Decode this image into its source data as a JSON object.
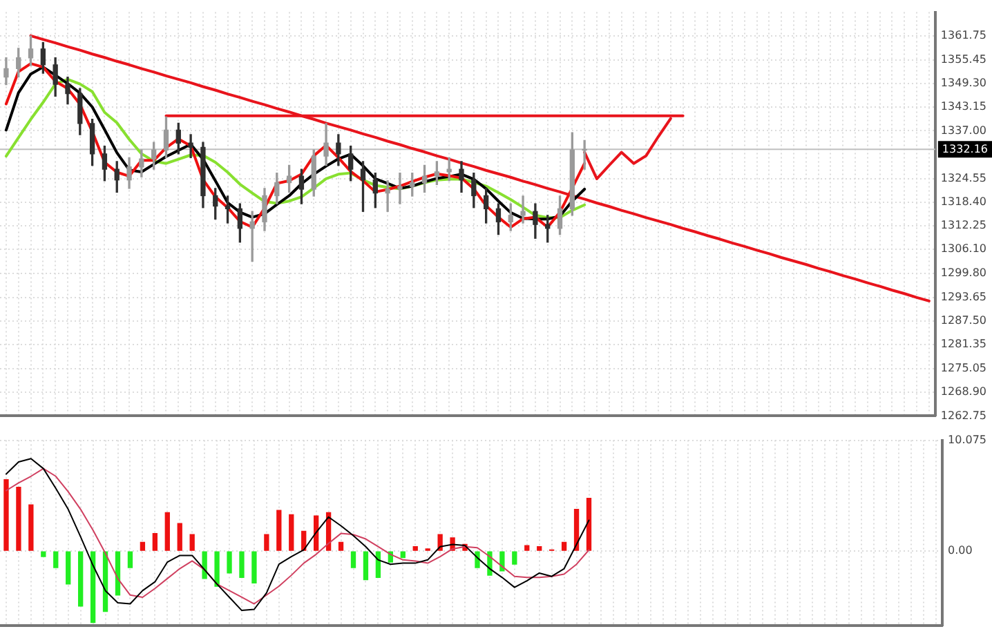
{
  "chart_data": [
    {
      "type": "candlestick",
      "categories": [
        null,
        null,
        null,
        null,
        null,
        null,
        null,
        null,
        null,
        null,
        null,
        null,
        null,
        null,
        null,
        null,
        null,
        null,
        null,
        null,
        null,
        null,
        null,
        null,
        null,
        null,
        null,
        null,
        null,
        null,
        null,
        null,
        null,
        null,
        null,
        null,
        null,
        null,
        null,
        null,
        null,
        null,
        null,
        null,
        null,
        null,
        null,
        null,
        null,
        null,
        null,
        null,
        null,
        null,
        null,
        null,
        null,
        null,
        null,
        null,
        null,
        null,
        null,
        null,
        null,
        null,
        null,
        null,
        null,
        null,
        null,
        null,
        null,
        null,
        null,
        null
      ],
      "ohlc": [
        [
          1351,
          1356,
          1349,
          1353.2
        ],
        [
          1353.2,
          1358.5,
          1351,
          1356
        ],
        [
          1356,
          1361.75,
          1354,
          1358.3
        ],
        [
          1358.3,
          1360,
          1352,
          1354.2
        ],
        [
          1354.2,
          1356,
          1346,
          1349.1
        ],
        [
          1349.1,
          1351,
          1344,
          1346.7
        ],
        [
          1346.7,
          1348,
          1336,
          1338.9
        ],
        [
          1338.9,
          1340,
          1328,
          1331
        ],
        [
          1331,
          1333,
          1324,
          1327
        ],
        [
          1327,
          1329,
          1321,
          1324.2
        ],
        [
          1324.2,
          1330,
          1322,
          1327.6
        ],
        [
          1327.6,
          1332,
          1325,
          1329.7
        ],
        [
          1329.7,
          1334,
          1327,
          1332
        ],
        [
          1332,
          1340.6,
          1330,
          1337.2
        ],
        [
          1337.2,
          1339,
          1331,
          1333.8
        ],
        [
          1333.8,
          1336,
          1330,
          1332.7
        ],
        [
          1332.7,
          1334,
          1317,
          1320.1
        ],
        [
          1320.1,
          1322,
          1314,
          1317.4
        ],
        [
          1317.4,
          1320,
          1313,
          1316.7
        ],
        [
          1316.7,
          1318,
          1308,
          1311.6
        ],
        [
          1311.6,
          1316,
          1303,
          1313.3
        ],
        [
          1313.3,
          1322,
          1311,
          1320.1
        ],
        [
          1320.1,
          1326,
          1318,
          1323.5
        ],
        [
          1323.5,
          1328,
          1321,
          1325.2
        ],
        [
          1325.2,
          1327,
          1318,
          1321.8
        ],
        [
          1321.8,
          1332,
          1320,
          1330.4
        ],
        [
          1330.4,
          1338.9,
          1328,
          1333.8
        ],
        [
          1333.8,
          1336,
          1328,
          1331
        ],
        [
          1331,
          1333,
          1324,
          1327
        ],
        [
          1327,
          1329,
          1316,
          1324.2
        ],
        [
          1324.2,
          1326,
          1317,
          1320.8
        ],
        [
          1320.8,
          1324,
          1316,
          1321.8
        ],
        [
          1321.8,
          1326,
          1318,
          1322.5
        ],
        [
          1322.5,
          1326,
          1320,
          1323.5
        ],
        [
          1323.5,
          1328,
          1321,
          1325.2
        ],
        [
          1325.2,
          1329,
          1323,
          1326.3
        ],
        [
          1326.3,
          1330,
          1324,
          1327
        ],
        [
          1327,
          1329,
          1321,
          1324.2
        ],
        [
          1324.2,
          1326,
          1317,
          1320.1
        ],
        [
          1320.1,
          1322,
          1313,
          1316.7
        ],
        [
          1316.7,
          1318,
          1310,
          1313.3
        ],
        [
          1313.3,
          1318,
          1311,
          1315
        ],
        [
          1315,
          1320,
          1313,
          1316
        ],
        [
          1316,
          1318,
          1309,
          1312.6
        ],
        [
          1312.6,
          1315,
          1308,
          1311.6
        ],
        [
          1311.6,
          1320,
          1310,
          1316.7
        ],
        [
          1316.7,
          1336.5,
          1315,
          1332
        ],
        [
          1332,
          1334.5,
          1327,
          1332.16
        ],
        null,
        null,
        null,
        null,
        null,
        null,
        null,
        null,
        null,
        null,
        null,
        null,
        null,
        null,
        null,
        null,
        null,
        null,
        null,
        null,
        null,
        null,
        null,
        null,
        null,
        null,
        null,
        null
      ],
      "series": [
        {
          "type": "line",
          "color": "#ee1111",
          "values": [
            1344,
            1352.4,
            1354.5,
            1353.6,
            1349.9,
            1348,
            1343.9,
            1336.8,
            1328.8,
            1326.2,
            1325.2,
            1329.3,
            1329.3,
            1332.6,
            1334.9,
            1333.1,
            1324.3,
            1319.8,
            1317,
            1313.4,
            1311.9,
            1316.9,
            1323.3,
            1324,
            1325.7,
            1330.5,
            1333.2,
            1330,
            1326.4,
            1324,
            1321.1,
            1321.7,
            1322.6,
            1323.8,
            1324.9,
            1325.8,
            1325.3,
            1324.7,
            1321.9,
            1317.5,
            1314.5,
            1311.9,
            1314.1,
            1314.5,
            1311.9,
            1315.8,
            1322.1,
            1328.5,
            null,
            null,
            null,
            null,
            null,
            null,
            null,
            null,
            null,
            null,
            null,
            null,
            null,
            null,
            null,
            null,
            null,
            null,
            null,
            null,
            null,
            null,
            null,
            null,
            null,
            null,
            null,
            null
          ]
        },
        {
          "type": "line",
          "color": "#000000",
          "values": [
            1337.2,
            1346.9,
            1351.8,
            1353.6,
            1351.5,
            1349.3,
            1346.8,
            1343.2,
            1337.3,
            1331.3,
            1326.8,
            1326.3,
            1328.3,
            1330.3,
            1331.9,
            1333.5,
            1329.6,
            1324,
            1318.3,
            1315.8,
            1314.5,
            1315.4,
            1317.8,
            1320.1,
            1323.2,
            1325.7,
            1327.8,
            1329.7,
            1330.9,
            1327.9,
            1324.5,
            1323.3,
            1322,
            1322.6,
            1323.7,
            1324.6,
            1325.1,
            1325.7,
            1324.4,
            1321.9,
            1318.7,
            1315.7,
            1314.2,
            1314,
            1314,
            1314.8,
            1318.7,
            1321.8,
            null,
            null,
            null,
            null,
            null,
            null,
            null,
            null,
            null,
            null,
            null,
            null,
            null,
            null,
            null,
            null,
            null,
            null,
            null,
            null,
            null,
            null,
            null,
            null,
            null,
            null,
            null,
            null
          ]
        },
        {
          "type": "line",
          "color": "#88e030",
          "values": [
            1330.4,
            1335.2,
            1340,
            1344.4,
            1349.2,
            1350.4,
            1349.2,
            1347.2,
            1341.8,
            1339.1,
            1334.8,
            1331,
            1329.1,
            1328.5,
            1329.6,
            1330.7,
            1330.6,
            1328.8,
            1326.2,
            1323.1,
            1320.8,
            1318.6,
            1318.1,
            1318.7,
            1319.8,
            1322.1,
            1324.5,
            1325.7,
            1326,
            1324.2,
            1322.8,
            1322.3,
            1321.9,
            1322.6,
            1323.5,
            1324.2,
            1324.4,
            1324.4,
            1323.6,
            1322.6,
            1320.9,
            1319.1,
            1317.1,
            1315,
            1314.4,
            1314.4,
            1316.3,
            1317.7,
            null,
            null,
            null,
            null,
            null,
            null,
            null,
            null,
            null,
            null,
            null,
            null,
            null,
            null,
            null,
            null,
            null,
            null,
            null,
            null,
            null,
            null,
            null,
            null,
            null,
            null,
            null,
            null
          ]
        },
        {
          "type": "line",
          "color": "#e8141c",
          "values": [
            null,
            null,
            1361.75,
            1360.8,
            1359.9,
            1358.9,
            1358,
            1357,
            1356.1,
            1355.1,
            1354.2,
            1353.2,
            1352.3,
            1351.3,
            1350.4,
            1349.5,
            1348.5,
            1347.6,
            1346.6,
            1345.7,
            1344.7,
            1343.8,
            1342.8,
            1341.9,
            1340.9,
            1340,
            1339,
            1338.1,
            1337.2,
            1336.2,
            1335.3,
            1334.3,
            1333.4,
            1332.4,
            1331.5,
            1330.5,
            1329.6,
            1328.6,
            1327.7,
            1326.7,
            1325.8,
            1324.9,
            1323.9,
            1323,
            1322,
            1321.1,
            1320.1,
            1319.2,
            1318.2,
            1317.3,
            1316.3,
            1315.4,
            1314.4,
            1313.5,
            1312.6,
            1311.6,
            1310.7,
            1309.7,
            1308.8,
            1307.8,
            1306.9,
            1305.9,
            1305,
            1304,
            1303.1,
            1302.2,
            1301.2,
            1300.3,
            1299.3,
            1298.4,
            1297.4,
            1296.5,
            1295.5,
            1294.6,
            1293.6,
            1292.7
          ]
        },
        {
          "type": "line",
          "color": "#e8141c",
          "values": [
            null,
            null,
            null,
            null,
            null,
            null,
            null,
            null,
            null,
            null,
            null,
            null,
            null,
            1340.9,
            1340.9,
            1340.9,
            1340.9,
            1340.9,
            1340.9,
            1340.9,
            1340.9,
            1340.9,
            1340.9,
            1340.9,
            1340.9,
            1340.9,
            1340.9,
            1340.9,
            1340.9,
            1340.9,
            1340.9,
            1340.9,
            1340.9,
            1340.9,
            1340.9,
            1340.9,
            1340.9,
            1340.9,
            1340.9,
            1340.9,
            1340.9,
            1340.9,
            1340.9,
            1340.9,
            1340.9,
            1340.9,
            1340.9,
            1340.9,
            1340.9,
            1340.9,
            1340.9,
            1340.9,
            1340.9,
            1340.9,
            1340.9,
            1340.9,
            null,
            null,
            null,
            null,
            null,
            null,
            null,
            null,
            null,
            null,
            null,
            null,
            null,
            null,
            null,
            null,
            null,
            null,
            null,
            null
          ]
        },
        {
          "type": "line",
          "color": "#e8141c",
          "values": [
            null,
            null,
            null,
            null,
            null,
            null,
            null,
            null,
            null,
            null,
            null,
            null,
            null,
            null,
            null,
            null,
            null,
            null,
            null,
            null,
            null,
            null,
            null,
            null,
            null,
            null,
            null,
            null,
            null,
            null,
            null,
            null,
            null,
            null,
            null,
            null,
            null,
            null,
            null,
            null,
            null,
            null,
            null,
            null,
            null,
            null,
            null,
            1331.4,
            1324.5,
            1328,
            1331.4,
            1328.5,
            1330.5,
            1335.5,
            1340.2,
            null,
            null,
            null,
            null,
            null,
            null,
            null,
            null,
            null,
            null,
            null,
            null,
            null,
            null,
            null,
            null,
            null,
            null,
            null,
            null,
            null
          ]
        }
      ],
      "ylim": [
        1262.75,
        1367.9
      ],
      "yticks": [
        {
          "value": 1361.75,
          "label": "1361.75"
        },
        {
          "value": 1355.45,
          "label": "1355.45"
        },
        {
          "value": 1349.3,
          "label": "1349.30"
        },
        {
          "value": 1343.15,
          "label": "1343.15"
        },
        {
          "value": 1337,
          "label": "1337.00"
        },
        {
          "value": 1324.55,
          "label": "1324.55"
        },
        {
          "value": 1318.4,
          "label": "1318.40"
        },
        {
          "value": 1312.25,
          "label": "1312.25"
        },
        {
          "value": 1306.1,
          "label": "1306.10"
        },
        {
          "value": 1299.8,
          "label": "1299.80"
        },
        {
          "value": 1293.65,
          "label": "1293.65"
        },
        {
          "value": 1287.5,
          "label": "1287.50"
        },
        {
          "value": 1281.35,
          "label": "1281.35"
        },
        {
          "value": 1275.05,
          "label": "1275.05"
        },
        {
          "value": 1268.9,
          "label": "1268.90"
        },
        {
          "value": 1262.75,
          "label": "1262.75"
        }
      ],
      "tick_labels": "y",
      "grid": true,
      "ref_lines": [
        {
          "axis": "y",
          "value": 1332.16,
          "label": "1332.16",
          "color": "#c0c0c0"
        }
      ]
    },
    {
      "type": "bar",
      "categories": [
        null,
        null,
        null,
        null,
        null,
        null,
        null,
        null,
        null,
        null,
        null,
        null,
        null,
        null,
        null,
        null,
        null,
        null,
        null,
        null,
        null,
        null,
        null,
        null,
        null,
        null,
        null,
        null,
        null,
        null,
        null,
        null,
        null,
        null,
        null,
        null,
        null,
        null,
        null,
        null,
        null,
        null,
        null,
        null,
        null,
        null,
        null,
        null,
        null,
        null,
        null,
        null,
        null,
        null,
        null,
        null,
        null,
        null,
        null,
        null,
        null,
        null,
        null,
        null,
        null,
        null,
        null,
        null,
        null,
        null,
        null,
        null,
        null,
        null,
        null,
        null
      ],
      "series": [
        {
          "color": "#ee1111",
          "values": [
            6.5,
            5.8,
            4.2,
            null,
            null,
            null,
            null,
            null,
            null,
            null,
            null,
            0.8,
            1.6,
            3.5,
            2.5,
            1.5,
            null,
            null,
            null,
            null,
            null,
            1.5,
            3.7,
            3.3,
            1.8,
            3.2,
            3.5,
            0.8,
            null,
            null,
            null,
            null,
            null,
            0.4,
            0.2,
            1.5,
            1.2,
            0.6,
            null,
            null,
            null,
            null,
            0.5,
            0.4,
            0.1,
            0.8,
            3.8,
            4.8,
            null,
            null,
            null,
            null,
            null,
            null,
            null,
            null,
            null,
            null,
            null,
            null,
            null,
            null,
            null,
            null,
            null,
            null,
            null,
            null,
            null,
            null,
            null,
            null,
            null,
            null,
            null,
            null
          ]
        },
        {
          "color": "#22ee22",
          "values": [
            null,
            null,
            null,
            -0.5,
            -1.5,
            -3,
            -5,
            -6.5,
            -5.5,
            -4,
            -1.5,
            null,
            null,
            null,
            null,
            null,
            -2.5,
            -3.2,
            -2,
            -2.4,
            -2.9,
            null,
            null,
            null,
            null,
            null,
            null,
            null,
            -1.5,
            -2.6,
            -2.4,
            -1,
            -0.6,
            null,
            null,
            null,
            null,
            null,
            -1.5,
            -2.2,
            -1.8,
            -1.2,
            null,
            null,
            null,
            null,
            null,
            null,
            null,
            null,
            null,
            null,
            null,
            null,
            null,
            null,
            null,
            null,
            null,
            null,
            null,
            null,
            null,
            null,
            null,
            null,
            null,
            null,
            null,
            null,
            null,
            null,
            null,
            null,
            null,
            null
          ]
        },
        {
          "type": "line",
          "color": "#000000",
          "values": [
            7,
            8.1,
            8.4,
            7.5,
            5.7,
            3.8,
            1.3,
            -1.3,
            -3.6,
            -4.7,
            -4.8,
            -3.6,
            -2.8,
            -1,
            -0.4,
            -0.4,
            -1.7,
            -3,
            -4.2,
            -5.4,
            -5.3,
            -3.8,
            -1.2,
            -0.5,
            0.1,
            1.7,
            3.1,
            2.3,
            1.4,
            0.4,
            -0.8,
            -1.2,
            -1.1,
            -1.1,
            -0.8,
            0.4,
            0.6,
            0.5,
            -0.6,
            -1.6,
            -2.4,
            -3.3,
            -2.7,
            -2,
            -2.3,
            -1.6,
            0.6,
            2.8,
            null,
            null,
            null,
            null,
            null,
            null,
            null,
            null,
            null,
            null,
            null,
            null,
            null,
            null,
            null,
            null,
            null,
            null,
            null,
            null,
            null,
            null,
            null,
            null,
            null,
            null,
            null,
            null
          ]
        },
        {
          "type": "line",
          "color": "#d04060",
          "values": [
            5.5,
            6.2,
            6.8,
            7.5,
            6.8,
            5.4,
            3.8,
            1.9,
            -0.2,
            -2.5,
            -4,
            -4.2,
            -3.4,
            -2.5,
            -1.6,
            -0.9,
            -1.7,
            -3,
            -3.6,
            -4.2,
            -4.8,
            -4,
            -3.2,
            -2.2,
            -1.1,
            -0.3,
            0.7,
            1.6,
            1.5,
            1.1,
            0.4,
            -0.3,
            -0.8,
            -0.9,
            -1.1,
            -0.5,
            0.2,
            0.4,
            0.3,
            -0.5,
            -1.4,
            -2.3,
            -2.4,
            -2.4,
            -2.3,
            -2.1,
            -1.2,
            0.1,
            null,
            null,
            null,
            null,
            null,
            null,
            null,
            null,
            null,
            null,
            null,
            null,
            null,
            null,
            null,
            null,
            null,
            null,
            null,
            null,
            null,
            null,
            null,
            null,
            null,
            null,
            null,
            null
          ]
        }
      ],
      "ylim": [
        -6.8,
        10.075
      ],
      "yticks": [
        {
          "value": 10.075,
          "label": "10.075"
        },
        {
          "value": 0,
          "label": "0.00"
        }
      ],
      "tick_labels": "y",
      "grid": true
    }
  ]
}
